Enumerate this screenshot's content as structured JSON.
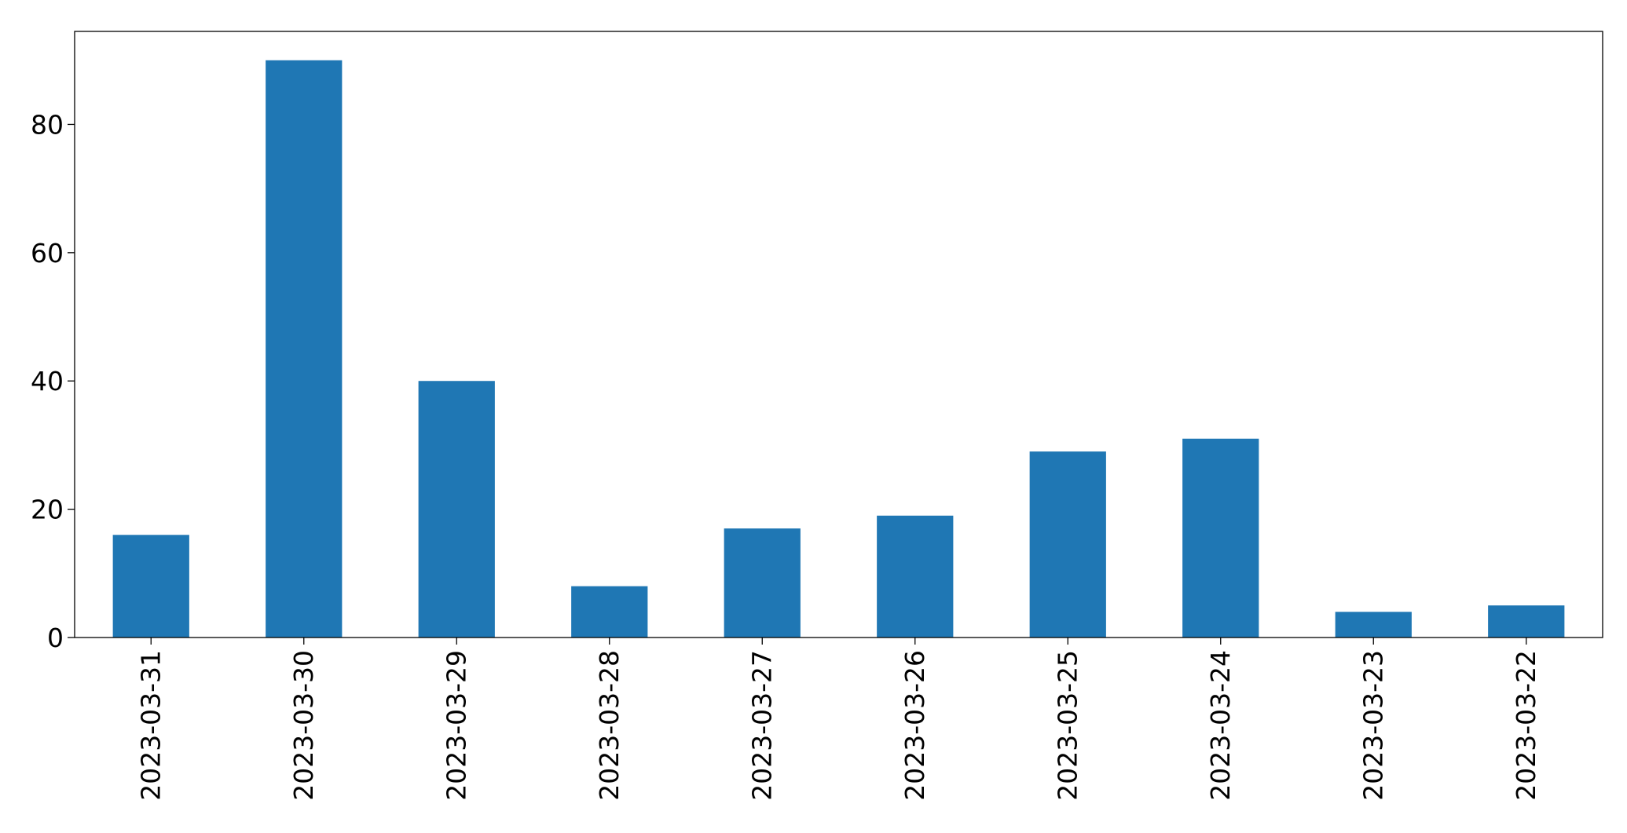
{
  "chart_data": {
    "type": "bar",
    "categories": [
      "2023-03-31",
      "2023-03-30",
      "2023-03-29",
      "2023-03-28",
      "2023-03-27",
      "2023-03-26",
      "2023-03-25",
      "2023-03-24",
      "2023-03-23",
      "2023-03-22"
    ],
    "values": [
      16,
      90,
      40,
      8,
      17,
      19,
      29,
      31,
      4,
      5
    ],
    "title": "",
    "xlabel": "",
    "ylabel": "",
    "ylim": [
      0,
      94.5
    ],
    "yticks": [
      0,
      20,
      40,
      60,
      80
    ],
    "grid": false,
    "legend": "none",
    "bar_color": "#1f77b4"
  }
}
